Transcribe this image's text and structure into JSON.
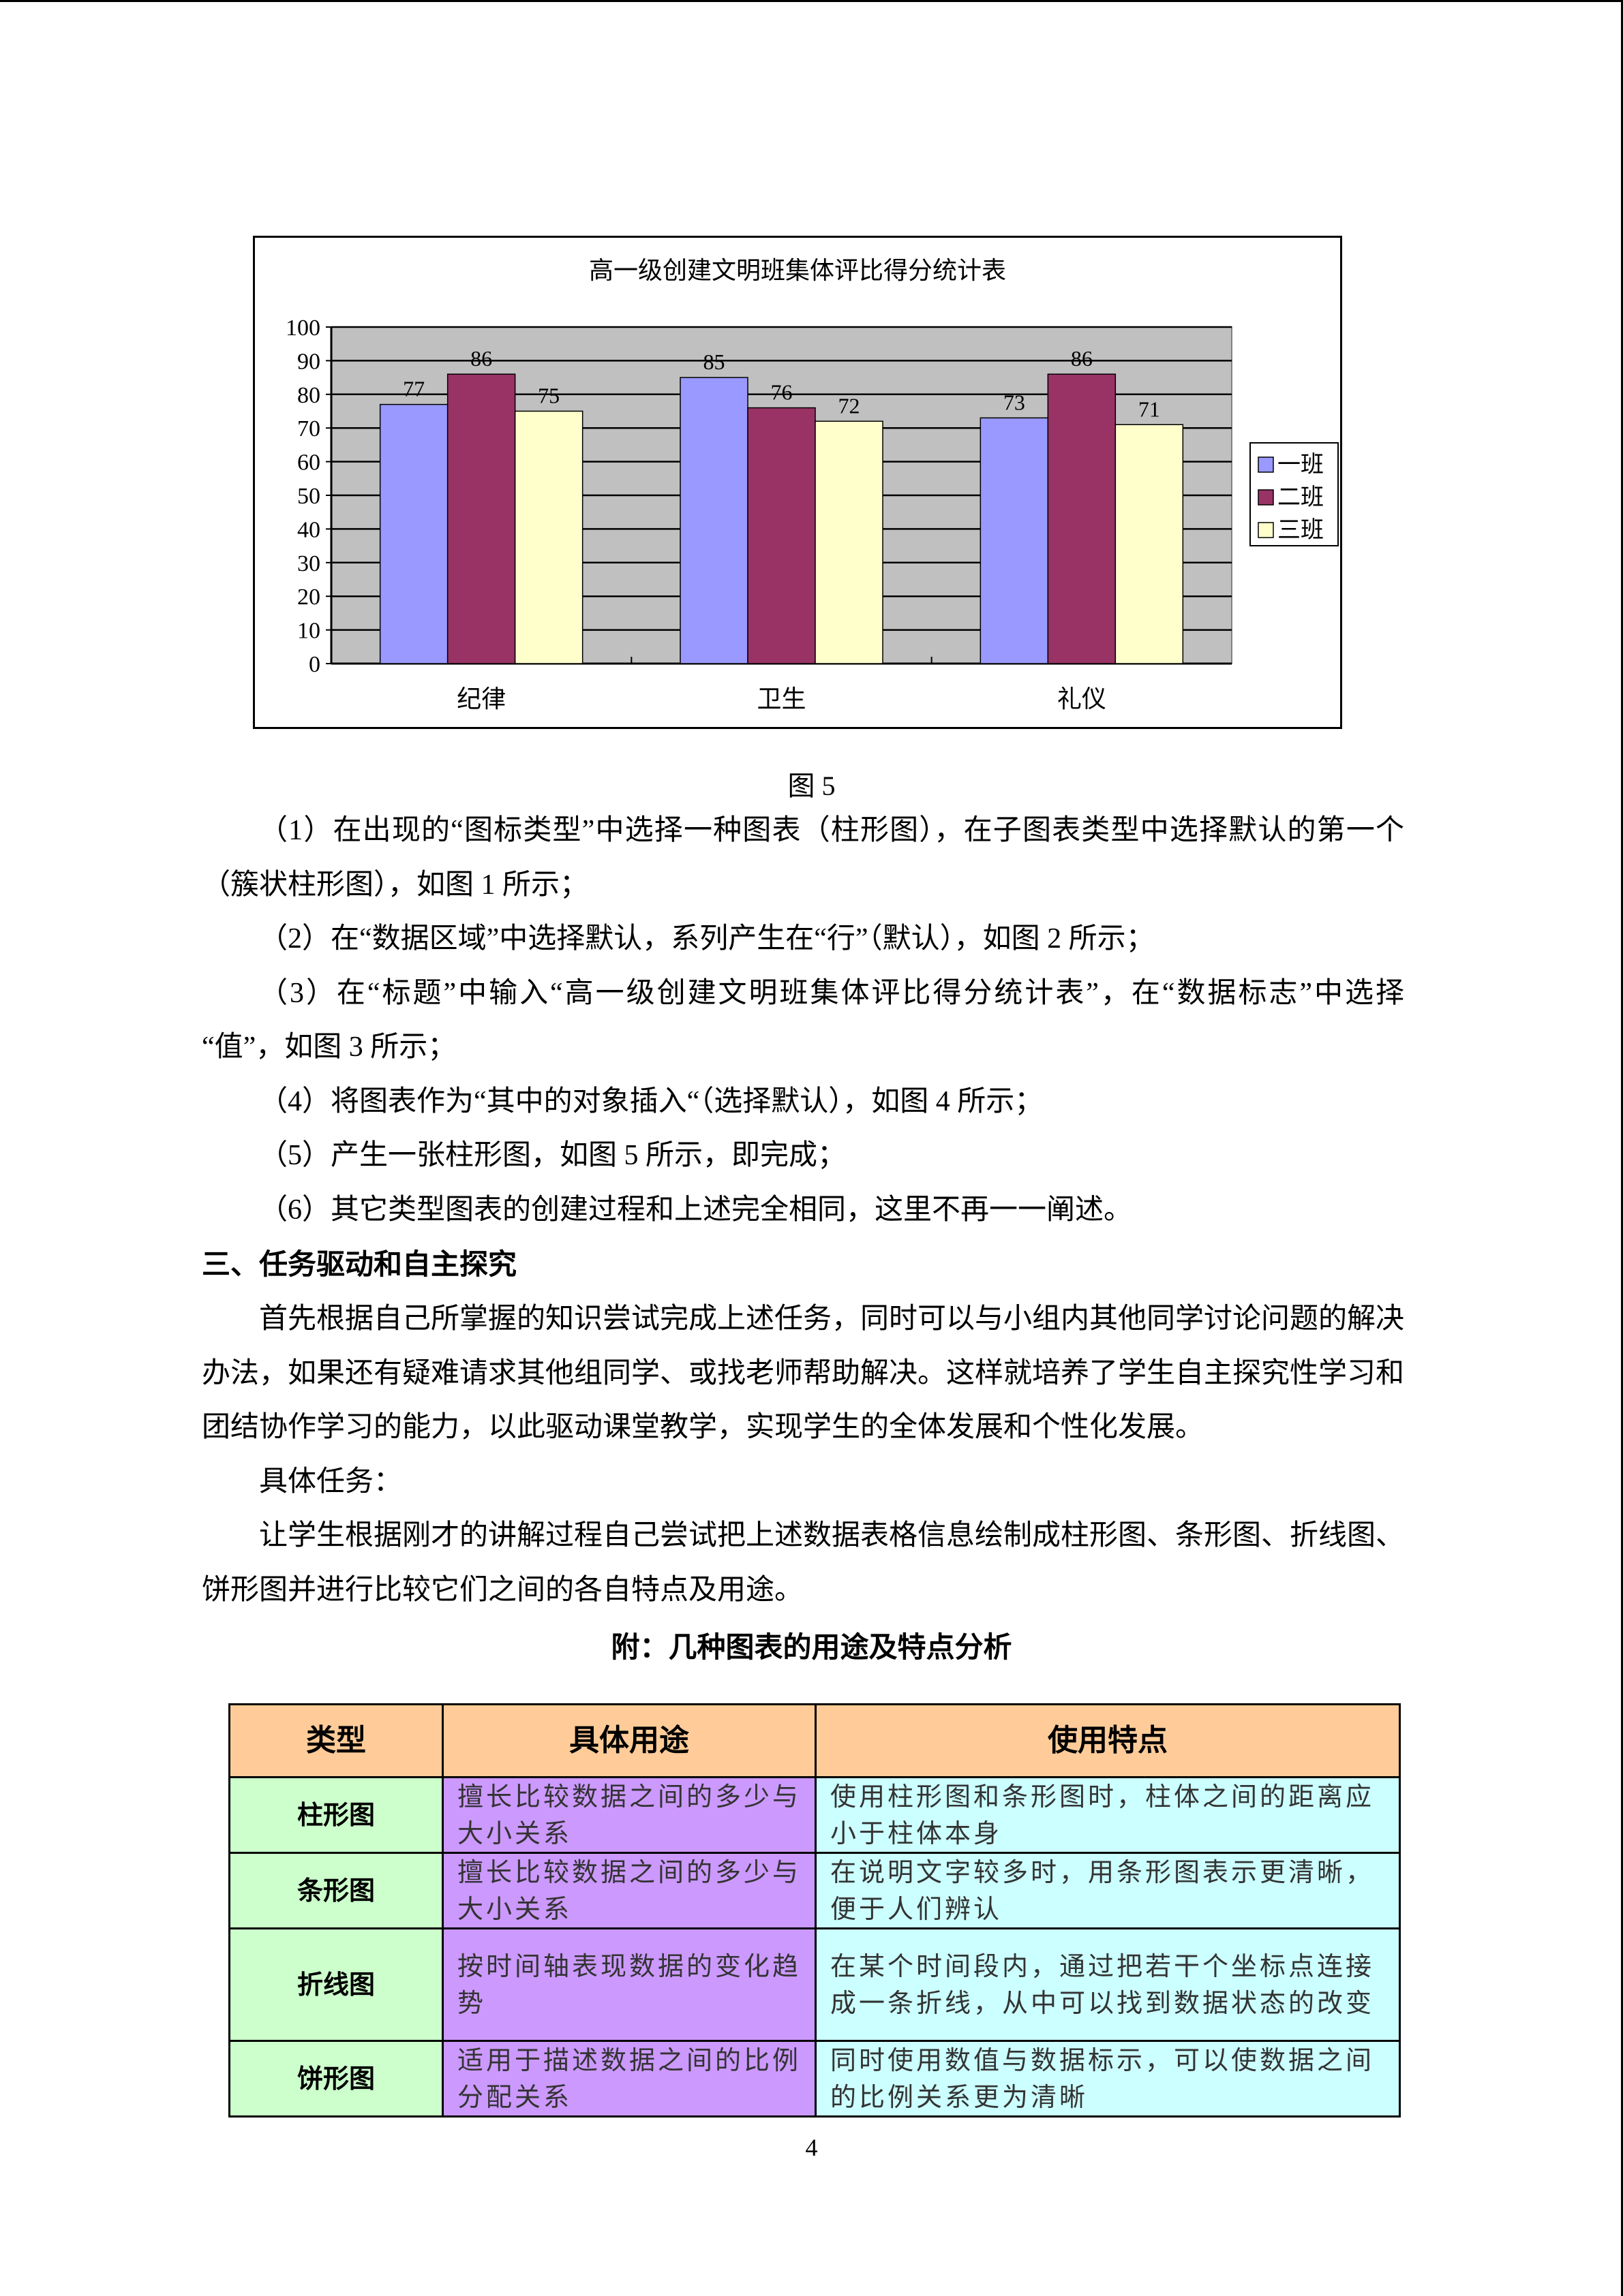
{
  "chart_data": {
    "type": "bar",
    "title": "高一级创建文明班集体评比得分统计表",
    "categories": [
      "纪律",
      "卫生",
      "礼仪"
    ],
    "series": [
      {
        "name": "一班",
        "values": [
          77,
          85,
          73
        ],
        "color": "#9999ff"
      },
      {
        "name": "二班",
        "values": [
          86,
          76,
          86
        ],
        "color": "#993366"
      },
      {
        "name": "三班",
        "values": [
          75,
          72,
          71
        ],
        "color": "#ffffcc"
      }
    ],
    "ylim": [
      0,
      100
    ],
    "yticks": [
      0,
      10,
      20,
      30,
      40,
      50,
      60,
      70,
      80,
      90,
      100
    ],
    "grid": true,
    "plot_background": "#c0c0c0",
    "legend": "right",
    "data_labels": true
  },
  "caption": "图 5",
  "steps": [
    [
      "（1）在出现的“图标类型”中选择一种图表（柱形图），在子图表类型中选择默认的第一个",
      "（簇状柱形图），如图 1 所示；"
    ],
    [
      "（2）在“数据区域”中选择默认，系列产生在“行”（默认），如图 2 所示；"
    ],
    [
      "（3）在“标题”中输入“高一级创建文明班集体评比得分统计表”，在“数据标志”中选择",
      "“值”，如图 3 所示；"
    ],
    [
      "（4）将图表作为“其中的对象插入“（选择默认），如图 4 所示；"
    ],
    [
      "（5）产生一张柱形图，如图 5 所示，即完成；"
    ],
    [
      "（6）其它类型图表的创建过程和上述完全相同，这里不再一一阐述。"
    ]
  ],
  "section_heading": "三、任务驱动和自主探究",
  "para1": [
    "首先根据自己所掌握的知识尝试完成上述任务，同时可以与小组内其他同学讨论问题的解决",
    "办法，如果还有疑难请求其他组同学、或找老师帮助解决。这样就培养了学生自主探究性学习和",
    "团结协作学习的能力，以此驱动课堂教学，实现学生的全体发展和个性化发展。"
  ],
  "task_label": "具体任务：",
  "para2": [
    "让学生根据刚才的讲解过程自己尝试把上述数据表格信息绘制成柱形图、条形图、折线图、",
    "饼形图并进行比较它们之间的各自特点及用途。"
  ],
  "table_title": "附：几种图表的用途及特点分析",
  "table": {
    "headers": [
      "类型",
      "具体用途",
      "使用特点"
    ],
    "rows": [
      [
        "柱形图",
        "擅长比较数据之间的多少与大小关系",
        "使用柱形图和条形图时，柱体之间的距离应小于柱体本身"
      ],
      [
        "条形图",
        "擅长比较数据之间的多少与大小关系",
        "在说明文字较多时，用条形图表示更清晰，便于人们辨认"
      ],
      [
        "折线图",
        "按时间轴表现数据的变化趋势",
        "在某个时间段内，通过把若干个坐标点连接成一条折线，从中可以找到数据状态的改变"
      ],
      [
        "饼形图",
        "适用于描述数据之间的比例分配关系",
        "同时使用数值与数据标示，可以使数据之间的比例关系更为清晰"
      ]
    ]
  },
  "page_number": "4"
}
